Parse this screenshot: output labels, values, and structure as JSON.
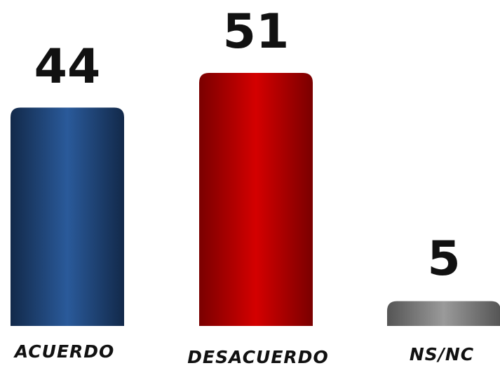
{
  "chart_data": {
    "type": "bar",
    "categories": [
      "ACUERDO",
      "DESACUERDO",
      "NS/NC"
    ],
    "values": [
      44,
      51,
      5
    ],
    "data_labels": [
      "44",
      "51",
      "5"
    ],
    "colors": [
      "#1f4e8c",
      "#c00000",
      "#7f7f7f"
    ],
    "title": "",
    "xlabel": "",
    "ylabel": "",
    "ylim": [
      0,
      51
    ],
    "grid": false,
    "legend": "none"
  }
}
